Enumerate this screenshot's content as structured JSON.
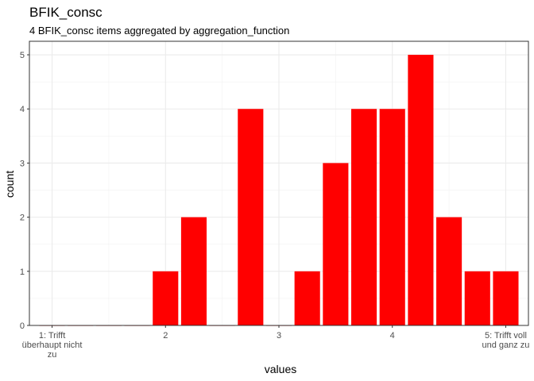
{
  "chart_data": {
    "type": "bar",
    "title": "BFIK_consc",
    "subtitle": "4 BFIK_consc items aggregated by aggregation_function",
    "xlabel": "values",
    "ylabel": "count",
    "xlim": [
      0.8,
      5.2
    ],
    "ylim": [
      0,
      5.25
    ],
    "bar_width": 0.225,
    "x_ticks": [
      {
        "value": 1,
        "label": "1: Trifft überhaupt nicht zu",
        "lines": [
          "1: Trifft",
          "überhaupt nicht",
          "zu"
        ]
      },
      {
        "value": 2,
        "label": "2",
        "lines": [
          "2"
        ]
      },
      {
        "value": 3,
        "label": "3",
        "lines": [
          "3"
        ]
      },
      {
        "value": 4,
        "label": "4",
        "lines": [
          "4"
        ]
      },
      {
        "value": 5,
        "label": "5: Trifft voll und ganz zu",
        "lines": [
          "5: Trifft voll",
          "und ganz zu"
        ]
      }
    ],
    "y_ticks": [
      0,
      1,
      2,
      3,
      4,
      5
    ],
    "x": [
      1.0,
      1.25,
      1.5,
      1.75,
      2.0,
      2.25,
      2.5,
      2.75,
      3.0,
      3.25,
      3.5,
      3.75,
      4.0,
      4.25,
      4.5,
      4.75,
      5.0
    ],
    "values": [
      0,
      0,
      0,
      0,
      1,
      2,
      0,
      4,
      0,
      1,
      3,
      4,
      4,
      5,
      2,
      1,
      1
    ],
    "grid": true,
    "bar_color": "#FF0000",
    "theme": "bw"
  }
}
